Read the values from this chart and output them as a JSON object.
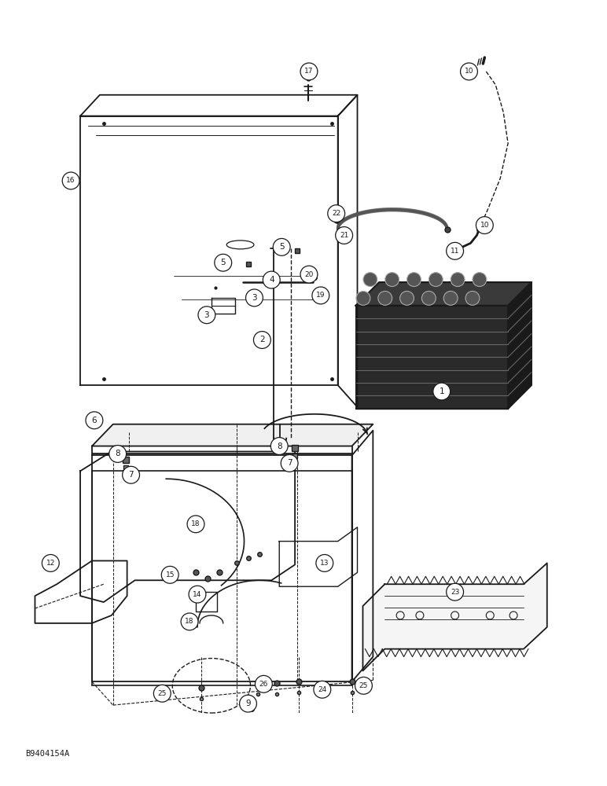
{
  "bg_color": "#ffffff",
  "line_color": "#1a1a1a",
  "figure_note": "B9404154A",
  "labels": [
    [
      563,
      498,
      "1"
    ],
    [
      333,
      432,
      "2"
    ],
    [
      262,
      400,
      "3"
    ],
    [
      323,
      378,
      "3"
    ],
    [
      345,
      355,
      "4"
    ],
    [
      283,
      333,
      "5"
    ],
    [
      358,
      313,
      "5"
    ],
    [
      118,
      535,
      "6"
    ],
    [
      165,
      605,
      "7"
    ],
    [
      368,
      590,
      "7"
    ],
    [
      148,
      578,
      "8"
    ],
    [
      355,
      568,
      "8"
    ],
    [
      315,
      898,
      "9"
    ],
    [
      598,
      88,
      "10"
    ],
    [
      618,
      285,
      "10"
    ],
    [
      580,
      318,
      "11"
    ],
    [
      62,
      718,
      "12"
    ],
    [
      413,
      718,
      "13"
    ],
    [
      250,
      758,
      "14"
    ],
    [
      215,
      733,
      "15"
    ],
    [
      88,
      228,
      "16"
    ],
    [
      393,
      88,
      "17"
    ],
    [
      248,
      668,
      "18"
    ],
    [
      240,
      793,
      "18"
    ],
    [
      408,
      375,
      "19"
    ],
    [
      393,
      348,
      "20"
    ],
    [
      438,
      298,
      "21"
    ],
    [
      428,
      270,
      "22"
    ],
    [
      580,
      755,
      "23"
    ],
    [
      410,
      880,
      "24"
    ],
    [
      205,
      885,
      "25"
    ],
    [
      463,
      875,
      "25"
    ],
    [
      335,
      873,
      "26"
    ]
  ]
}
